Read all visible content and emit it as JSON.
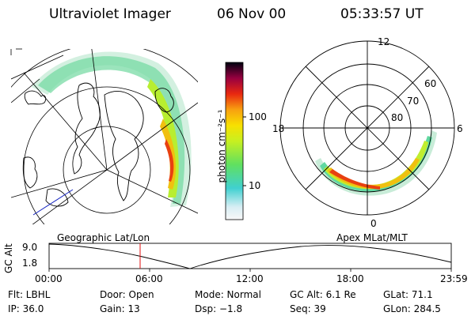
{
  "header": {
    "instrument": "Ultraviolet Imager",
    "date": "06 Nov 00",
    "time": "05:33:57 UT"
  },
  "colorbar": {
    "unit_label": "photon cm⁻²s⁻¹",
    "ticks": [
      "100",
      "10"
    ],
    "scale": "log"
  },
  "polar_plot": {
    "labels": {
      "top": "12",
      "left": "18",
      "right": "6",
      "bottom": "0"
    },
    "lat_rings": [
      "60",
      "70",
      "80"
    ]
  },
  "projections": {
    "left": "Geographic Lat/Lon",
    "right": "Apex MLat/MLT"
  },
  "altitude_plot": {
    "ylabel": "GC Alt",
    "yticks": [
      "9.0",
      "1.8"
    ],
    "xticks": [
      "00:00",
      "06:00",
      "12:00",
      "18:00",
      "23:59"
    ],
    "current_time_marker": "05:33"
  },
  "info": {
    "flt": "Flt: LBHL",
    "ip": "IP: 36.0",
    "door": "Door: Open",
    "gain": "Gain: 13",
    "mode": "Mode: Normal",
    "dsp": "Dsp:   −1.8",
    "gc_alt": "GC Alt: 6.1 Re",
    "seq": "Seq: 39",
    "glat": "GLat:  71.1",
    "glon": "GLon: 284.5"
  },
  "colors": {
    "marker": "#e01010",
    "colorscale": [
      "#f5f5f5",
      "#c8e8f0",
      "#40d0d0",
      "#60e060",
      "#b0f020",
      "#f0e800",
      "#f8a010",
      "#e83010",
      "#a00030",
      "#400060",
      "#000020"
    ]
  }
}
